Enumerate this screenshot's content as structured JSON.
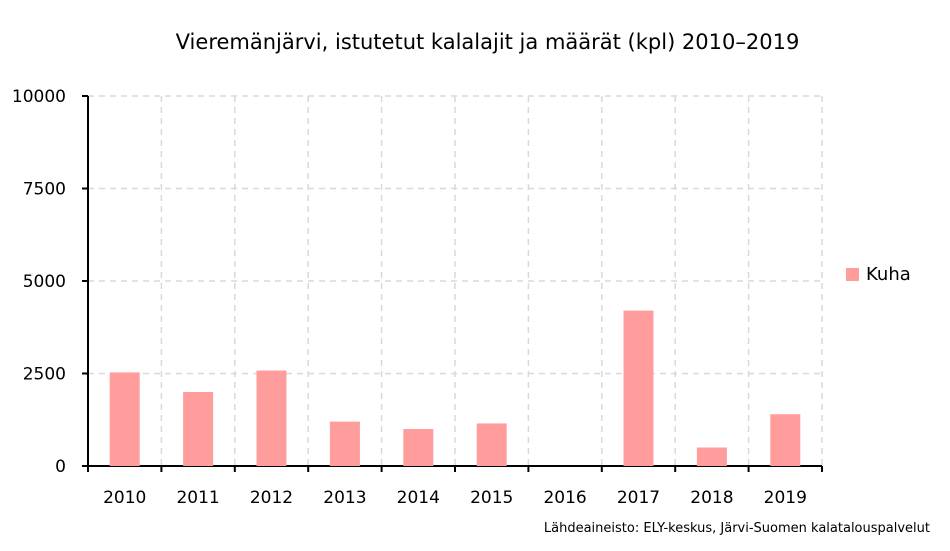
{
  "chart_data": {
    "type": "bar",
    "title": "Vieremänjärvi, istutetut kalalajit ja määrät (kpl) 2010–2019",
    "categories": [
      "2010",
      "2011",
      "2012",
      "2013",
      "2014",
      "2015",
      "2016",
      "2017",
      "2018",
      "2019"
    ],
    "series": [
      {
        "name": "Kuha",
        "color": "#ff9d9d",
        "values": [
          2530,
          2000,
          2580,
          1200,
          1000,
          1150,
          0,
          4200,
          500,
          1400
        ]
      }
    ],
    "ylim": [
      0,
      10000
    ],
    "yticks": [
      "10000",
      "7500",
      "5000",
      "2500",
      "0"
    ],
    "ytick_values": [
      10000,
      7500,
      5000,
      2500,
      0
    ],
    "grid": true,
    "legend_position": "right"
  },
  "source_note": "Lähdeaineisto: ELY-keskus, Järvi-Suomen kalatalouspalvelut"
}
